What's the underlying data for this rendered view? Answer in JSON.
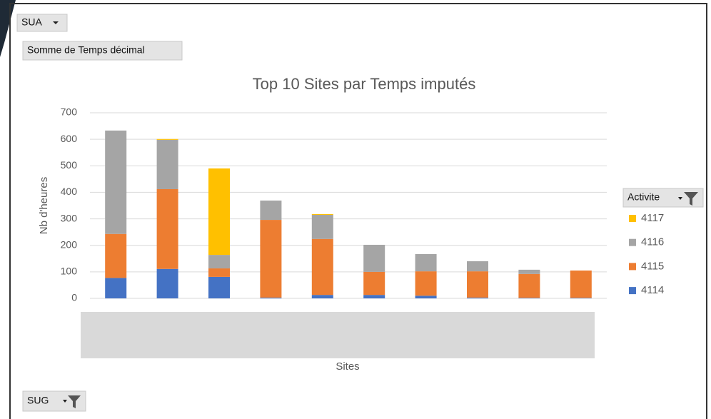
{
  "page": {
    "filter_top": "SUA",
    "value_field": "Somme de Temps décimal",
    "filter_bottom": "SUG"
  },
  "chart_data": {
    "type": "stacked_bar",
    "title": "Top 10 Sites par Temps imputés",
    "x_label": "Sites",
    "y_label": "Nb d'heures",
    "legend_title": "Activite",
    "legend": "right",
    "grid": true,
    "categories": [
      null,
      null,
      null,
      null,
      null,
      null,
      null,
      null,
      null,
      null
    ],
    "ylim": [
      0,
      700
    ],
    "yticks": [
      0,
      100,
      200,
      300,
      400,
      500,
      600,
      700
    ],
    "series": [
      {
        "name": "4114",
        "color": "#4472c4",
        "values": [
          77,
          111,
          81,
          3,
          13,
          13,
          10,
          3,
          2,
          2
        ]
      },
      {
        "name": "4115",
        "color": "#ed7d31",
        "values": [
          166,
          301,
          32,
          293,
          211,
          87,
          92,
          99,
          90,
          103
        ]
      },
      {
        "name": "4116",
        "color": "#a5a5a5",
        "values": [
          390,
          186,
          51,
          73,
          91,
          102,
          65,
          38,
          16,
          0
        ]
      },
      {
        "name": "4117",
        "color": "#ffc000",
        "values": [
          0,
          3,
          326,
          0,
          3,
          0,
          0,
          0,
          0,
          0
        ]
      }
    ]
  }
}
